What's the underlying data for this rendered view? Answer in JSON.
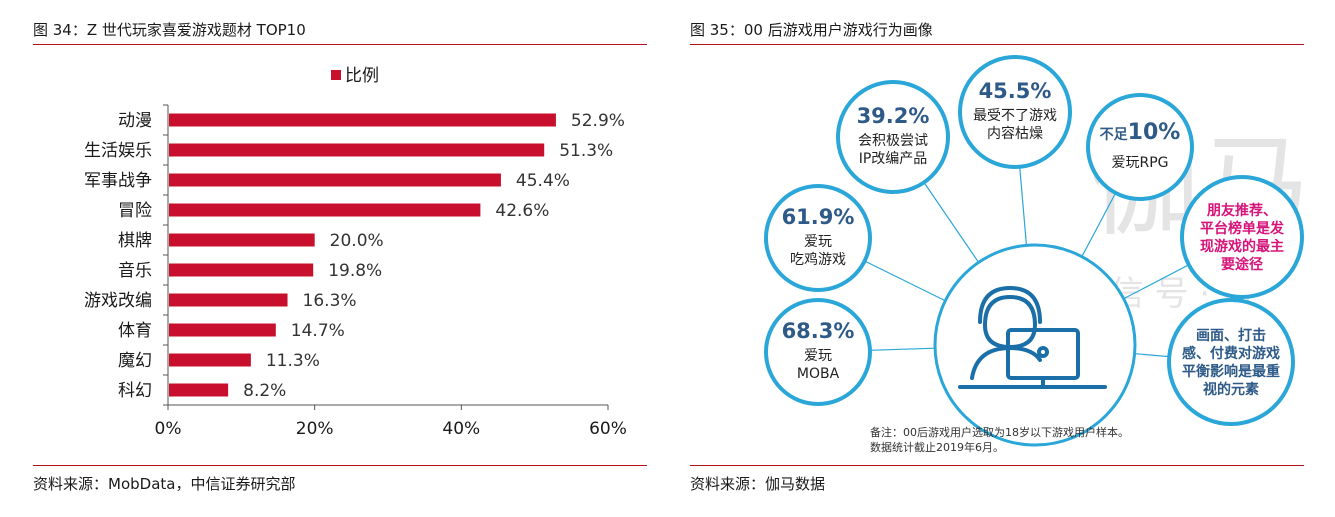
{
  "left": {
    "title": "图 34：Z 世代玩家喜爱游戏题材 TOP10",
    "source": "资料来源：MobData，中信证券研究部"
  },
  "right": {
    "title": "图 35：00 后游戏用户游戏行为画像",
    "source": "资料来源：伽马数据",
    "bubbles": [
      {
        "value": "39.2%",
        "lines": [
          "会积极尝试",
          "IP改编产品"
        ]
      },
      {
        "value": "45.5%",
        "lines": [
          "最受不了游戏",
          "内容枯燥"
        ]
      },
      {
        "prefix": "不足",
        "value": "10%",
        "lines": [
          "爱玩RPG"
        ]
      },
      {
        "value": "61.9%",
        "lines": [
          "爱玩",
          "吃鸡游戏"
        ]
      },
      {
        "value": "68.3%",
        "lines": [
          "爱玩",
          "MOBA"
        ]
      },
      {
        "lines": [
          "朋友推荐、",
          "平台榜单是发",
          "现游戏的最主",
          "要途径"
        ]
      },
      {
        "lines": [
          "画面、打击",
          "感、付费对游戏",
          "平衡影响是最重",
          "视的元素"
        ]
      }
    ],
    "note": [
      "备注：00后游戏用户选取为18岁以下游戏用户样本。",
      "数据统计截止2019年6月。"
    ],
    "watermark": [
      "伽马",
      "微 信 号 · 游"
    ],
    "colors": {
      "ring": "#2aa7d8",
      "title": "#2e5a88",
      "highlight": "#d6147a"
    }
  },
  "chart_data": {
    "type": "bar",
    "orientation": "horizontal",
    "title": "",
    "categories": [
      "动漫",
      "生活娱乐",
      "军事战争",
      "冒险",
      "棋牌",
      "音乐",
      "游戏改编",
      "体育",
      "魔幻",
      "科幻"
    ],
    "series": [
      {
        "name": "比例",
        "values": [
          52.9,
          51.3,
          45.4,
          42.6,
          20.0,
          19.8,
          16.3,
          14.7,
          11.3,
          8.2
        ]
      }
    ],
    "value_labels": [
      "52.9%",
      "51.3%",
      "45.4%",
      "42.6%",
      "20.0%",
      "19.8%",
      "16.3%",
      "14.7%",
      "11.3%",
      "8.2%"
    ],
    "xlim": [
      0,
      60
    ],
    "xticks": [
      "0%",
      "20%",
      "40%",
      "60%"
    ],
    "xlabel": "",
    "ylabel": "",
    "legend": "top-center",
    "grid": false,
    "bar_color": "#c8102e"
  }
}
